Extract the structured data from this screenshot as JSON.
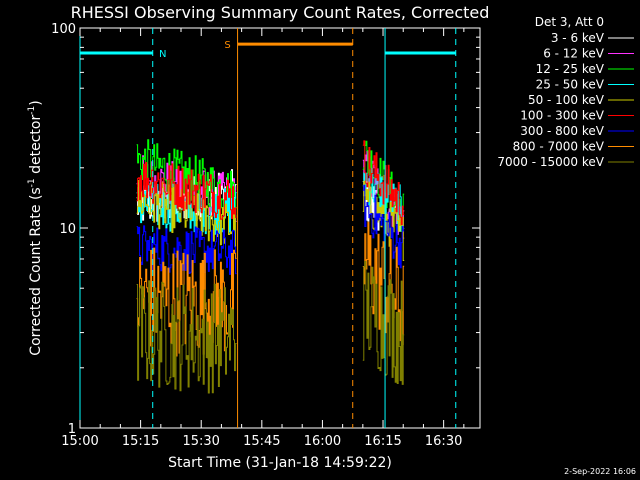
{
  "chart_data": {
    "type": "line",
    "title": "RHESSI Observing Summary Count Rates, Corrected",
    "xlabel": "Start Time (31-Jan-18 14:59:22)",
    "ylabel_parts": [
      "Corrected Count Rate (s",
      "-1",
      " detector",
      "-1",
      ")"
    ],
    "y_scale": "log",
    "ylim": [
      1,
      100
    ],
    "xlim_minutes_after_1500": [
      0,
      99
    ],
    "x_ticks": [
      {
        "m": 0,
        "label": "15:00"
      },
      {
        "m": 15,
        "label": "15:15"
      },
      {
        "m": 30,
        "label": "15:30"
      },
      {
        "m": 45,
        "label": "15:45"
      },
      {
        "m": 60,
        "label": "16:00"
      },
      {
        "m": 75,
        "label": "16:15"
      },
      {
        "m": 90,
        "label": "16:30"
      }
    ],
    "y_ticks": [
      {
        "v": 1,
        "label": "1"
      },
      {
        "v": 10,
        "label": "10"
      },
      {
        "v": 100,
        "label": "100"
      }
    ],
    "legend_header": "Det 3, Att 0",
    "legend_position": "top-right outside",
    "series": [
      {
        "name": "3 - 6 keV",
        "color": "#ffffff",
        "seg1": [
          13,
          15
        ],
        "seg2": [
          14,
          11
        ]
      },
      {
        "name": "6 - 12 keV",
        "color": "#ff33ff",
        "seg1": [
          18,
          14
        ],
        "seg2": [
          20,
          11
        ]
      },
      {
        "name": "12 - 25 keV",
        "color": "#00ff00",
        "seg1": [
          22,
          15
        ],
        "seg2": [
          24,
          12
        ]
      },
      {
        "name": "25 - 50 keV",
        "color": "#00ffff",
        "seg1": [
          13,
          12
        ],
        "seg2": [
          18,
          12
        ]
      },
      {
        "name": "50 - 100 keV",
        "color": "#cccc00",
        "seg1": [
          14,
          10
        ],
        "seg2": [
          14,
          9
        ]
      },
      {
        "name": "100 - 300 keV",
        "color": "#ff0000",
        "seg1": [
          18,
          14
        ],
        "seg2": [
          22,
          13
        ]
      },
      {
        "name": "300 - 800 keV",
        "color": "#0000ff",
        "seg1": [
          8,
          7.5
        ],
        "seg2": [
          13,
          8
        ]
      },
      {
        "name": "800 - 7000 keV",
        "color": "#ff8c00",
        "seg1": [
          4.5,
          4.2
        ],
        "seg2": [
          7,
          4
        ]
      },
      {
        "name": "7000 - 15000 keV",
        "color": "#808000",
        "seg1": [
          3,
          2.8
        ],
        "seg2": [
          4,
          3
        ]
      }
    ],
    "data_segments_minutes": [
      [
        14,
        38.5
      ],
      [
        70,
        80
      ]
    ],
    "flags": [
      {
        "label": "N",
        "color": "#00ffff",
        "bars": [
          [
            0,
            18
          ],
          [
            75.5,
            93
          ]
        ],
        "value": 75,
        "dashed_at": [
          18,
          93
        ],
        "solid_at": [
          0,
          75.5
        ]
      },
      {
        "label": "S",
        "color": "#ff8c00",
        "bars": [
          [
            39,
            67.5
          ]
        ],
        "value": 83,
        "dashed_at": [
          67.5
        ],
        "solid_at": [
          39
        ]
      }
    ]
  },
  "footer_timestamp": "2-Sep-2022 16:06"
}
